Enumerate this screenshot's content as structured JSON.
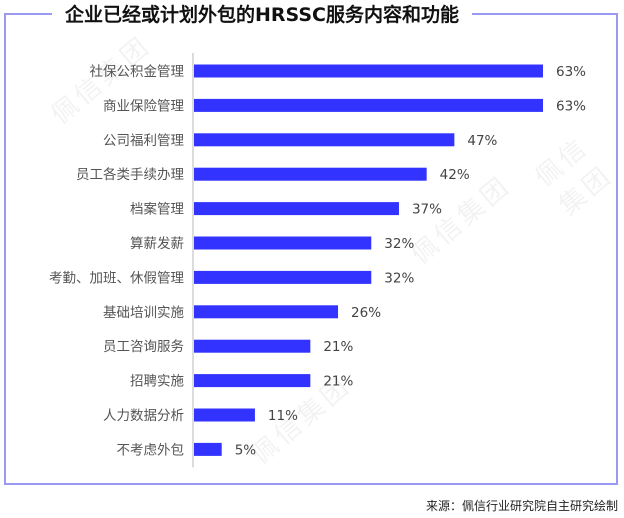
{
  "chart_data": {
    "type": "bar",
    "orientation": "horizontal",
    "title": "企业已经或计划外包的HRSSC服务内容和功能",
    "categories": [
      "社保公积金管理",
      "商业保险管理",
      "公司福利管理",
      "员工各类手续办理",
      "档案管理",
      "算薪发薪",
      "考勤、加班、休假管理",
      "基础培训实施",
      "员工咨询服务",
      "招聘实施",
      "人力数据分析",
      "不考虑外包"
    ],
    "values": [
      63,
      63,
      47,
      42,
      37,
      32,
      32,
      26,
      21,
      21,
      11,
      5
    ],
    "value_labels": [
      "63%",
      "63%",
      "47%",
      "42%",
      "37%",
      "32%",
      "32%",
      "26%",
      "21%",
      "21%",
      "11%",
      "5%"
    ],
    "unit": "%",
    "xlim": [
      0,
      63
    ],
    "grid": false,
    "bar_color": "#3333ff",
    "frame_color": "#9a9af5"
  },
  "source": "来源：佩信行业研究院自主研究绘制",
  "watermark": "佩信集团"
}
